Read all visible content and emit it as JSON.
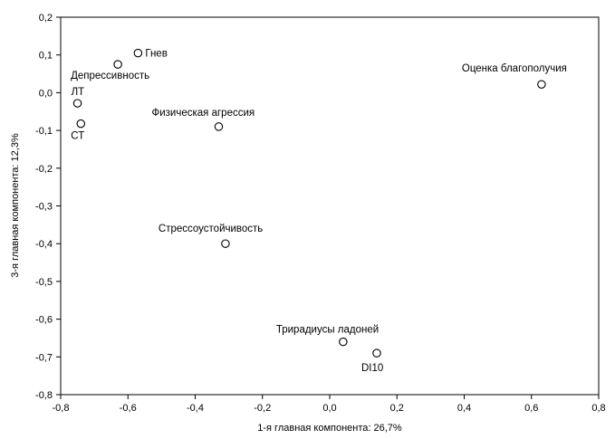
{
  "chart_data": {
    "type": "scatter",
    "xlabel": "1-я главная компонента: 26,7%",
    "ylabel": "3-я главная компонента: 12,3%",
    "xlim": [
      -0.8,
      0.8
    ],
    "ylim": [
      -0.8,
      0.2
    ],
    "xticks": [
      "-0,8",
      "-0,6",
      "-0,4",
      "-0,2",
      "0,0",
      "0,2",
      "0,4",
      "0,6",
      "0,8"
    ],
    "yticks": [
      "0,2",
      "0,1",
      "0,0",
      "-0,1",
      "-0,2",
      "-0,3",
      "-0,4",
      "-0,5",
      "-0,6",
      "-0,7",
      "-0,8"
    ],
    "grid": false,
    "points": [
      {
        "label": "Гнев",
        "x": -0.57,
        "y": 0.105
      },
      {
        "label": "Депрессивность",
        "x": -0.63,
        "y": 0.075
      },
      {
        "label": "ЛТ",
        "x": -0.75,
        "y": -0.028
      },
      {
        "label": "СТ",
        "x": -0.74,
        "y": -0.082
      },
      {
        "label": "Физическая агрессия",
        "x": -0.33,
        "y": -0.09
      },
      {
        "label": "Оценка благополучия",
        "x": 0.63,
        "y": 0.022
      },
      {
        "label": "Стрессоустойчивость",
        "x": -0.31,
        "y": -0.4
      },
      {
        "label": "Трирадиусы ладоней",
        "x": 0.04,
        "y": -0.66
      },
      {
        "label": "DI10",
        "x": 0.14,
        "y": -0.69
      }
    ]
  }
}
